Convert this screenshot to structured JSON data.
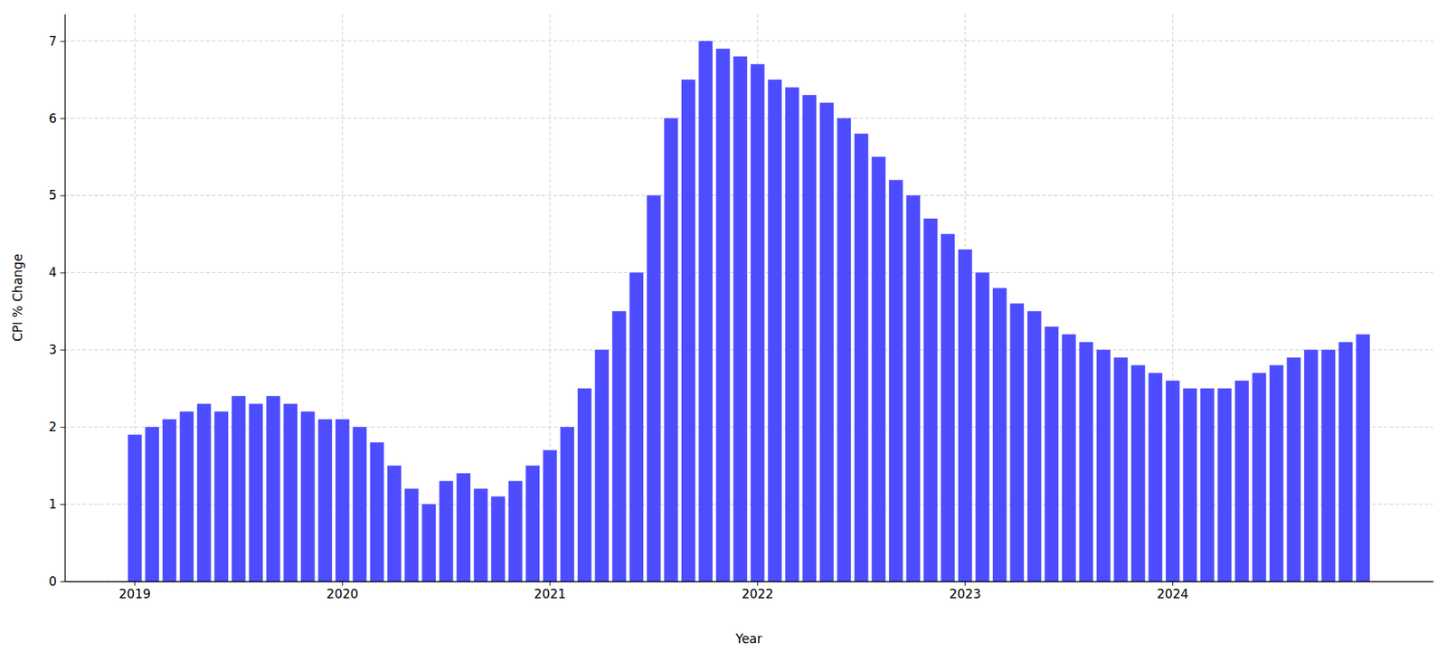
{
  "chart_data": {
    "type": "bar",
    "xlabel": "Year",
    "ylabel": "CPI % Change",
    "categories": [
      "2019",
      null,
      null,
      null,
      null,
      null,
      null,
      null,
      null,
      null,
      null,
      null,
      "2020",
      null,
      null,
      null,
      null,
      null,
      null,
      null,
      null,
      null,
      null,
      null,
      "2021",
      null,
      null,
      null,
      null,
      null,
      null,
      null,
      null,
      null,
      null,
      null,
      "2022",
      null,
      null,
      null,
      null,
      null,
      null,
      null,
      null,
      null,
      null,
      null,
      "2023",
      null,
      null,
      null,
      null,
      null,
      null,
      null,
      null,
      null,
      null,
      null,
      "2024",
      null,
      null,
      null,
      null,
      null,
      null,
      null,
      null,
      null,
      null,
      null
    ],
    "values": [
      1.9,
      2.0,
      2.1,
      2.2,
      2.3,
      2.2,
      2.4,
      2.3,
      2.4,
      2.3,
      2.2,
      2.1,
      2.1,
      2.0,
      1.8,
      1.5,
      1.2,
      1.0,
      1.3,
      1.4,
      1.2,
      1.1,
      1.3,
      1.5,
      1.7,
      2.0,
      2.5,
      3.0,
      3.5,
      4.0,
      5.0,
      6.0,
      6.5,
      7.0,
      6.9,
      6.8,
      6.7,
      6.5,
      6.4,
      6.3,
      6.2,
      6.0,
      5.8,
      5.5,
      5.2,
      5.0,
      4.7,
      4.5,
      4.3,
      4.0,
      3.8,
      3.6,
      3.5,
      3.3,
      3.2,
      3.1,
      3.0,
      2.9,
      2.8,
      2.7,
      2.6,
      2.5,
      2.5,
      2.5,
      2.6,
      2.7,
      2.8,
      2.9,
      3.0,
      3.0,
      3.1,
      3.2
    ],
    "color": "#4d4dff",
    "ylim": [
      0,
      7.35
    ],
    "yticks": [
      0,
      1,
      2,
      3,
      4,
      5,
      6,
      7
    ],
    "grid": true
  }
}
